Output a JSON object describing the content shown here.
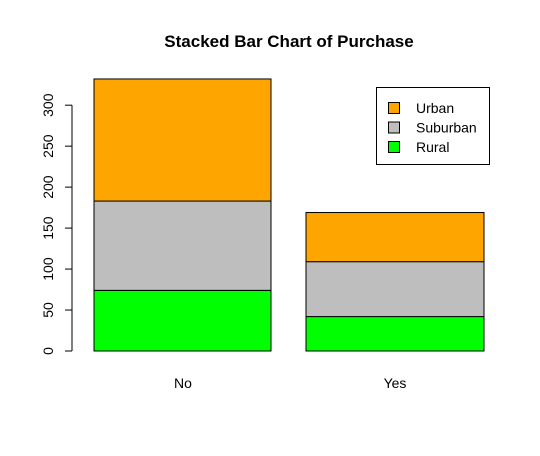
{
  "chart_data": {
    "type": "bar",
    "stacked": true,
    "title": "Stacked Bar Chart of Purchase",
    "xlabel": "",
    "ylabel": "",
    "categories": [
      "No",
      "Yes"
    ],
    "series": [
      {
        "name": "Rural",
        "color": "#00ff00",
        "values": [
          74,
          42
        ]
      },
      {
        "name": "Suburban",
        "color": "#bebebe",
        "values": [
          109,
          67
        ]
      },
      {
        "name": "Urban",
        "color": "#ffa500",
        "values": [
          149,
          60
        ]
      }
    ],
    "ylim": [
      0,
      330
    ],
    "yticks": [
      0,
      50,
      100,
      150,
      200,
      250,
      300
    ],
    "legend": {
      "position": "top-right",
      "order": [
        "Urban",
        "Suburban",
        "Rural"
      ]
    },
    "grid": false
  }
}
